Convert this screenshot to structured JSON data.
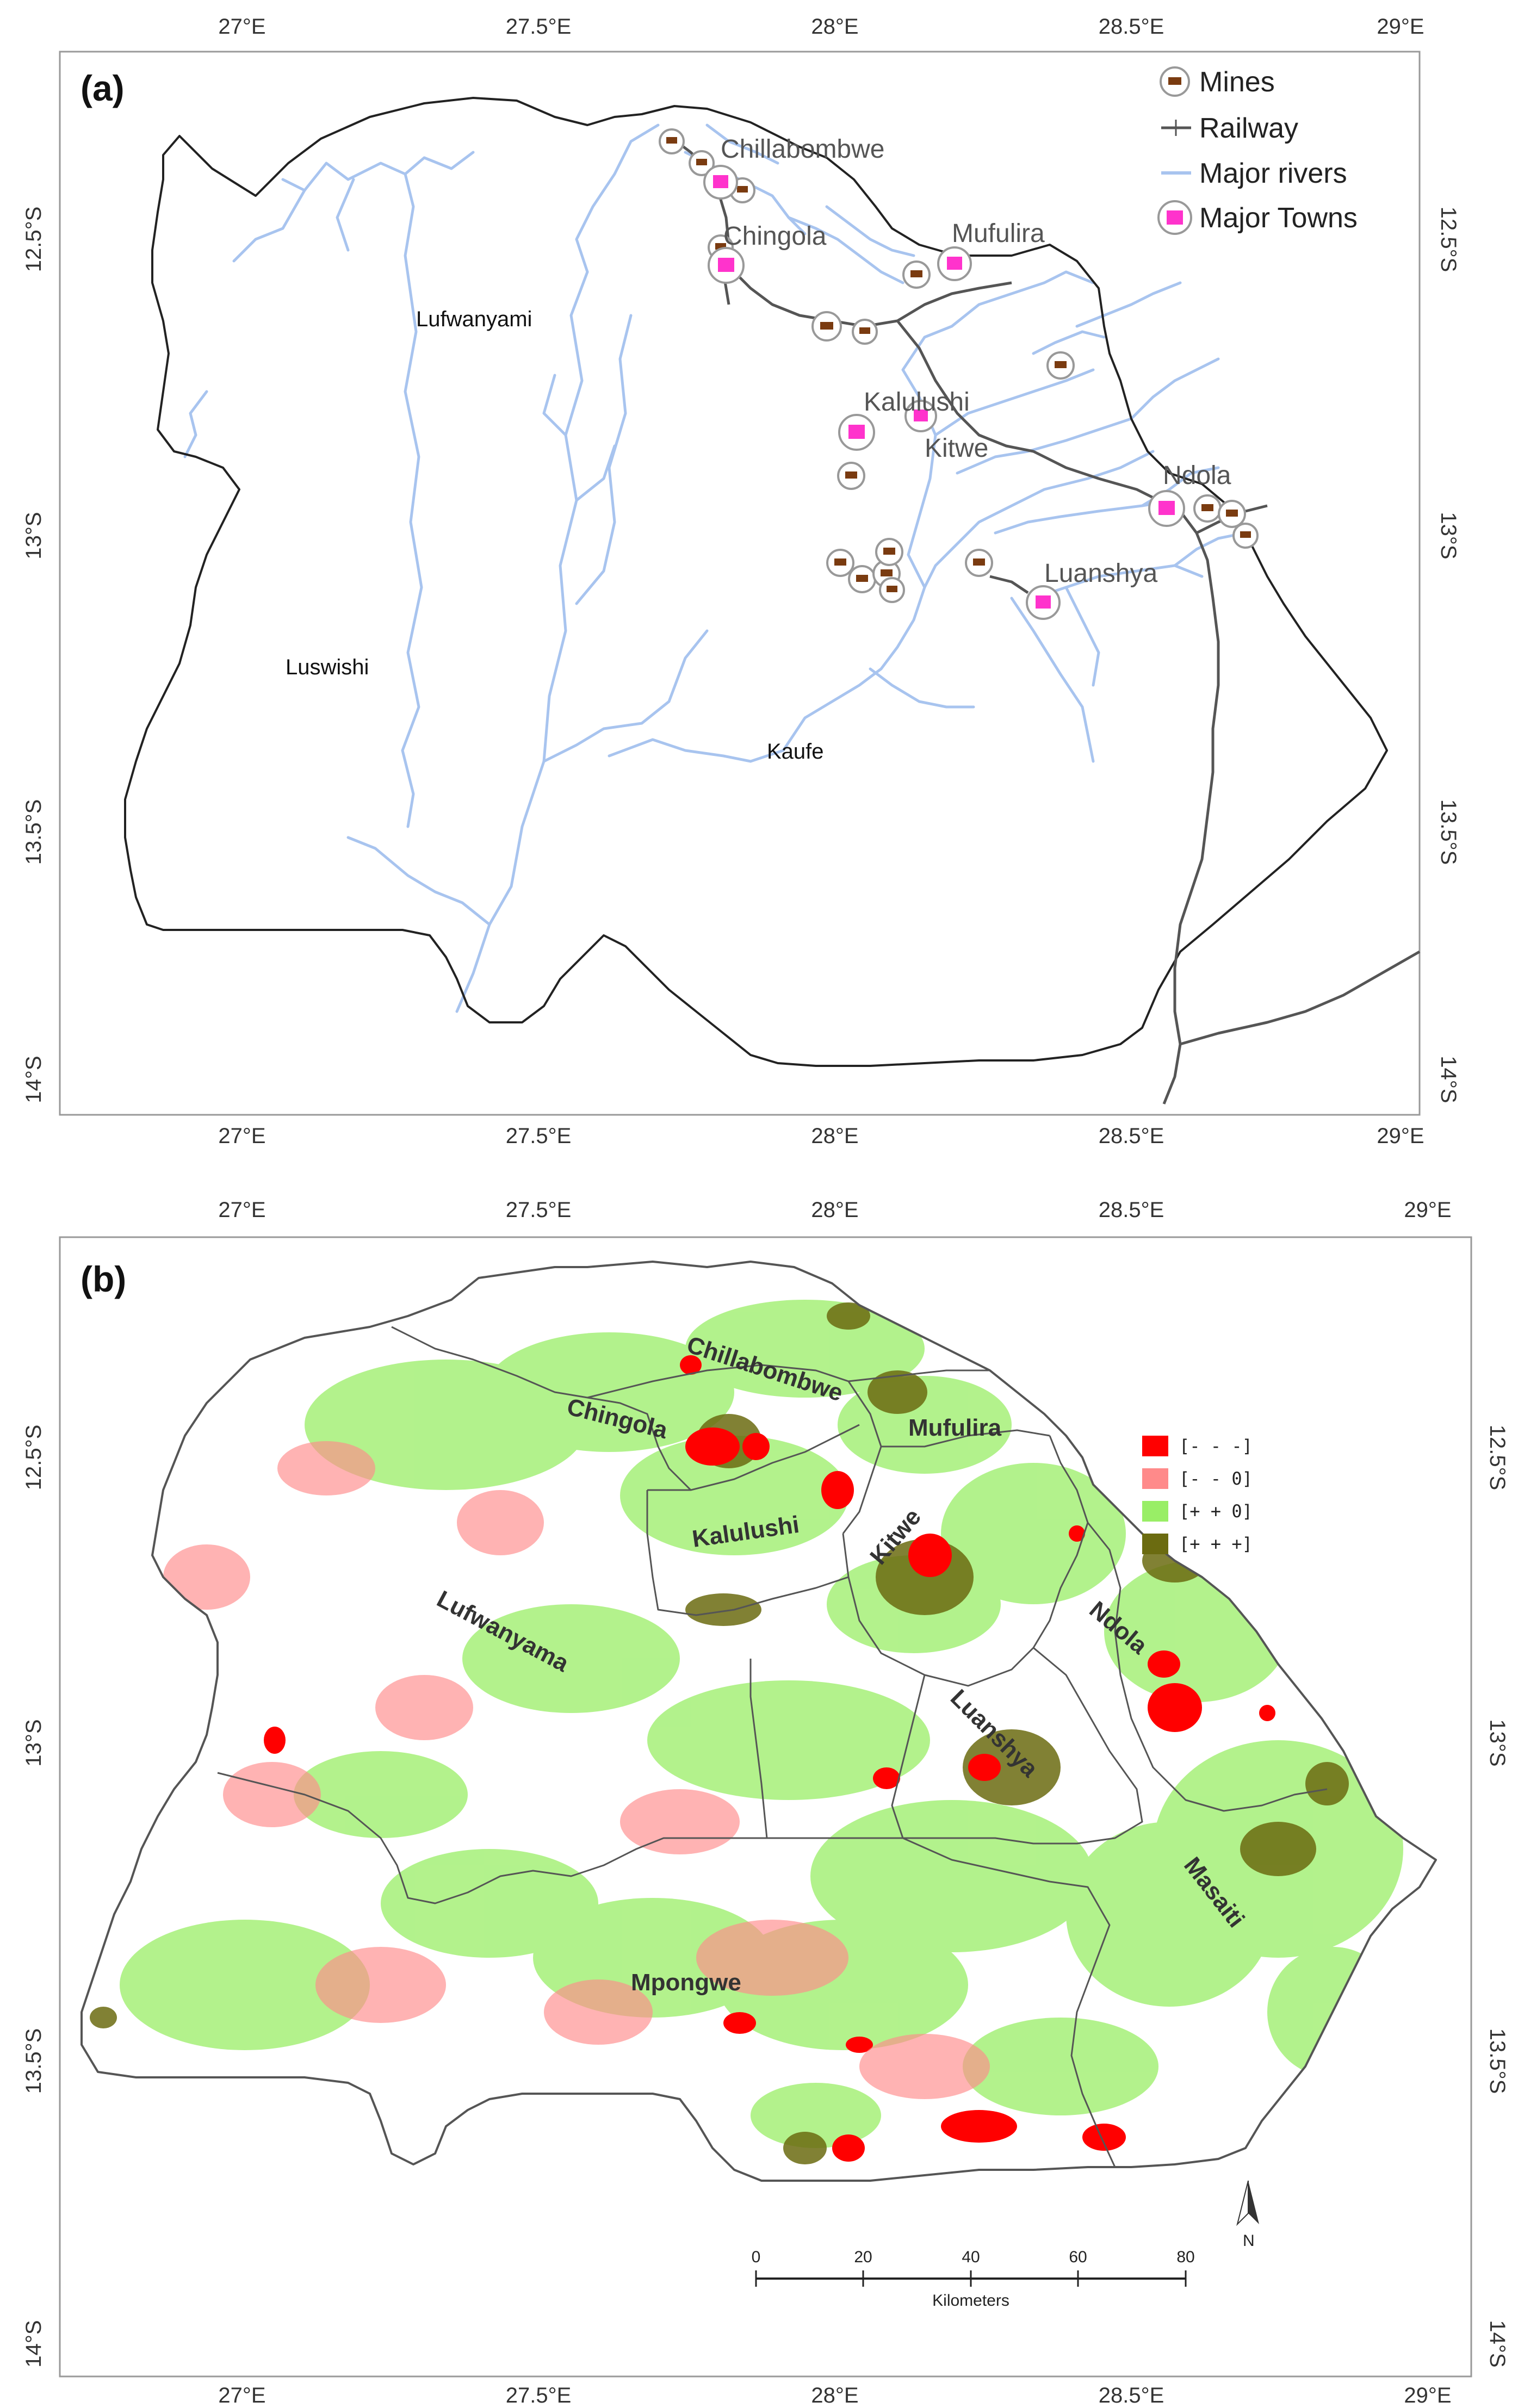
{
  "panel_a": {
    "label": "(a)",
    "x_ticks": [
      "27°E",
      "27.5°E",
      "28°E",
      "28.5°E",
      "29°E"
    ],
    "y_ticks": [
      "12.5°S",
      "13°S",
      "13.5°S",
      "14°S"
    ],
    "legend": {
      "mines": "Mines",
      "railway": "Railway",
      "rivers": "Major rivers",
      "towns": "Major Towns"
    },
    "towns": {
      "chillabombwe": "Chillabombwe",
      "chingola": "Chingola",
      "mufulira": "Mufulira",
      "kalulushi": "Kalulushi",
      "kitwe": "Kitwe",
      "ndola": "Ndola",
      "luanshya": "Luanshya"
    },
    "rivers": {
      "lufwanyami": "Lufwanyami",
      "luswishi": "Luswishi",
      "kaufe": "Kaufe"
    }
  },
  "panel_b": {
    "label": "(b)",
    "x_ticks": [
      "27°E",
      "27.5°E",
      "28°E",
      "28.5°E",
      "29°E"
    ],
    "y_ticks": [
      "12.5°S",
      "13°S",
      "13.5°S",
      "14°S"
    ],
    "legend": [
      "[- - -]",
      "[- - 0]",
      "[+ + 0]",
      "[+ + +]"
    ],
    "legend_colors": [
      "#ff0000",
      "#ff8a8a",
      "#99ee66",
      "#6b6b10"
    ],
    "districts": {
      "chillabombwe": "Chillabombwe",
      "chingola": "Chingola",
      "mufulira": "Mufulira",
      "kalulushi": "Kalulushi",
      "kitwe": "Kitwe",
      "ndola": "Ndola",
      "luanshya": "Luanshya",
      "lufwanyama": "Lufwanyama",
      "masaiti": "Masaiti",
      "mpongwe": "Mpongwe"
    },
    "scale_bar": {
      "ticks": [
        "0",
        "20",
        "40",
        "60",
        "80"
      ],
      "unit": "Kilometers"
    },
    "north": "N"
  },
  "colors": {
    "river": "#a8c4ef",
    "railway": "#555555",
    "boundary": "#222222",
    "mine_icon": "#7a3b10",
    "town_icon": "#ff33cc"
  }
}
